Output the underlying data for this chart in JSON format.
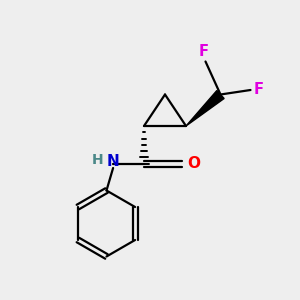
{
  "bg_color": "#eeeeee",
  "atom_colors": {
    "C": "#000000",
    "N": "#0000cd",
    "O": "#ff0000",
    "F": "#e000e0",
    "H": "#4a8888"
  },
  "bond_color": "#000000",
  "figsize": [
    3.0,
    3.0
  ],
  "dpi": 100,
  "xlim": [
    0,
    10
  ],
  "ylim": [
    0,
    10
  ]
}
